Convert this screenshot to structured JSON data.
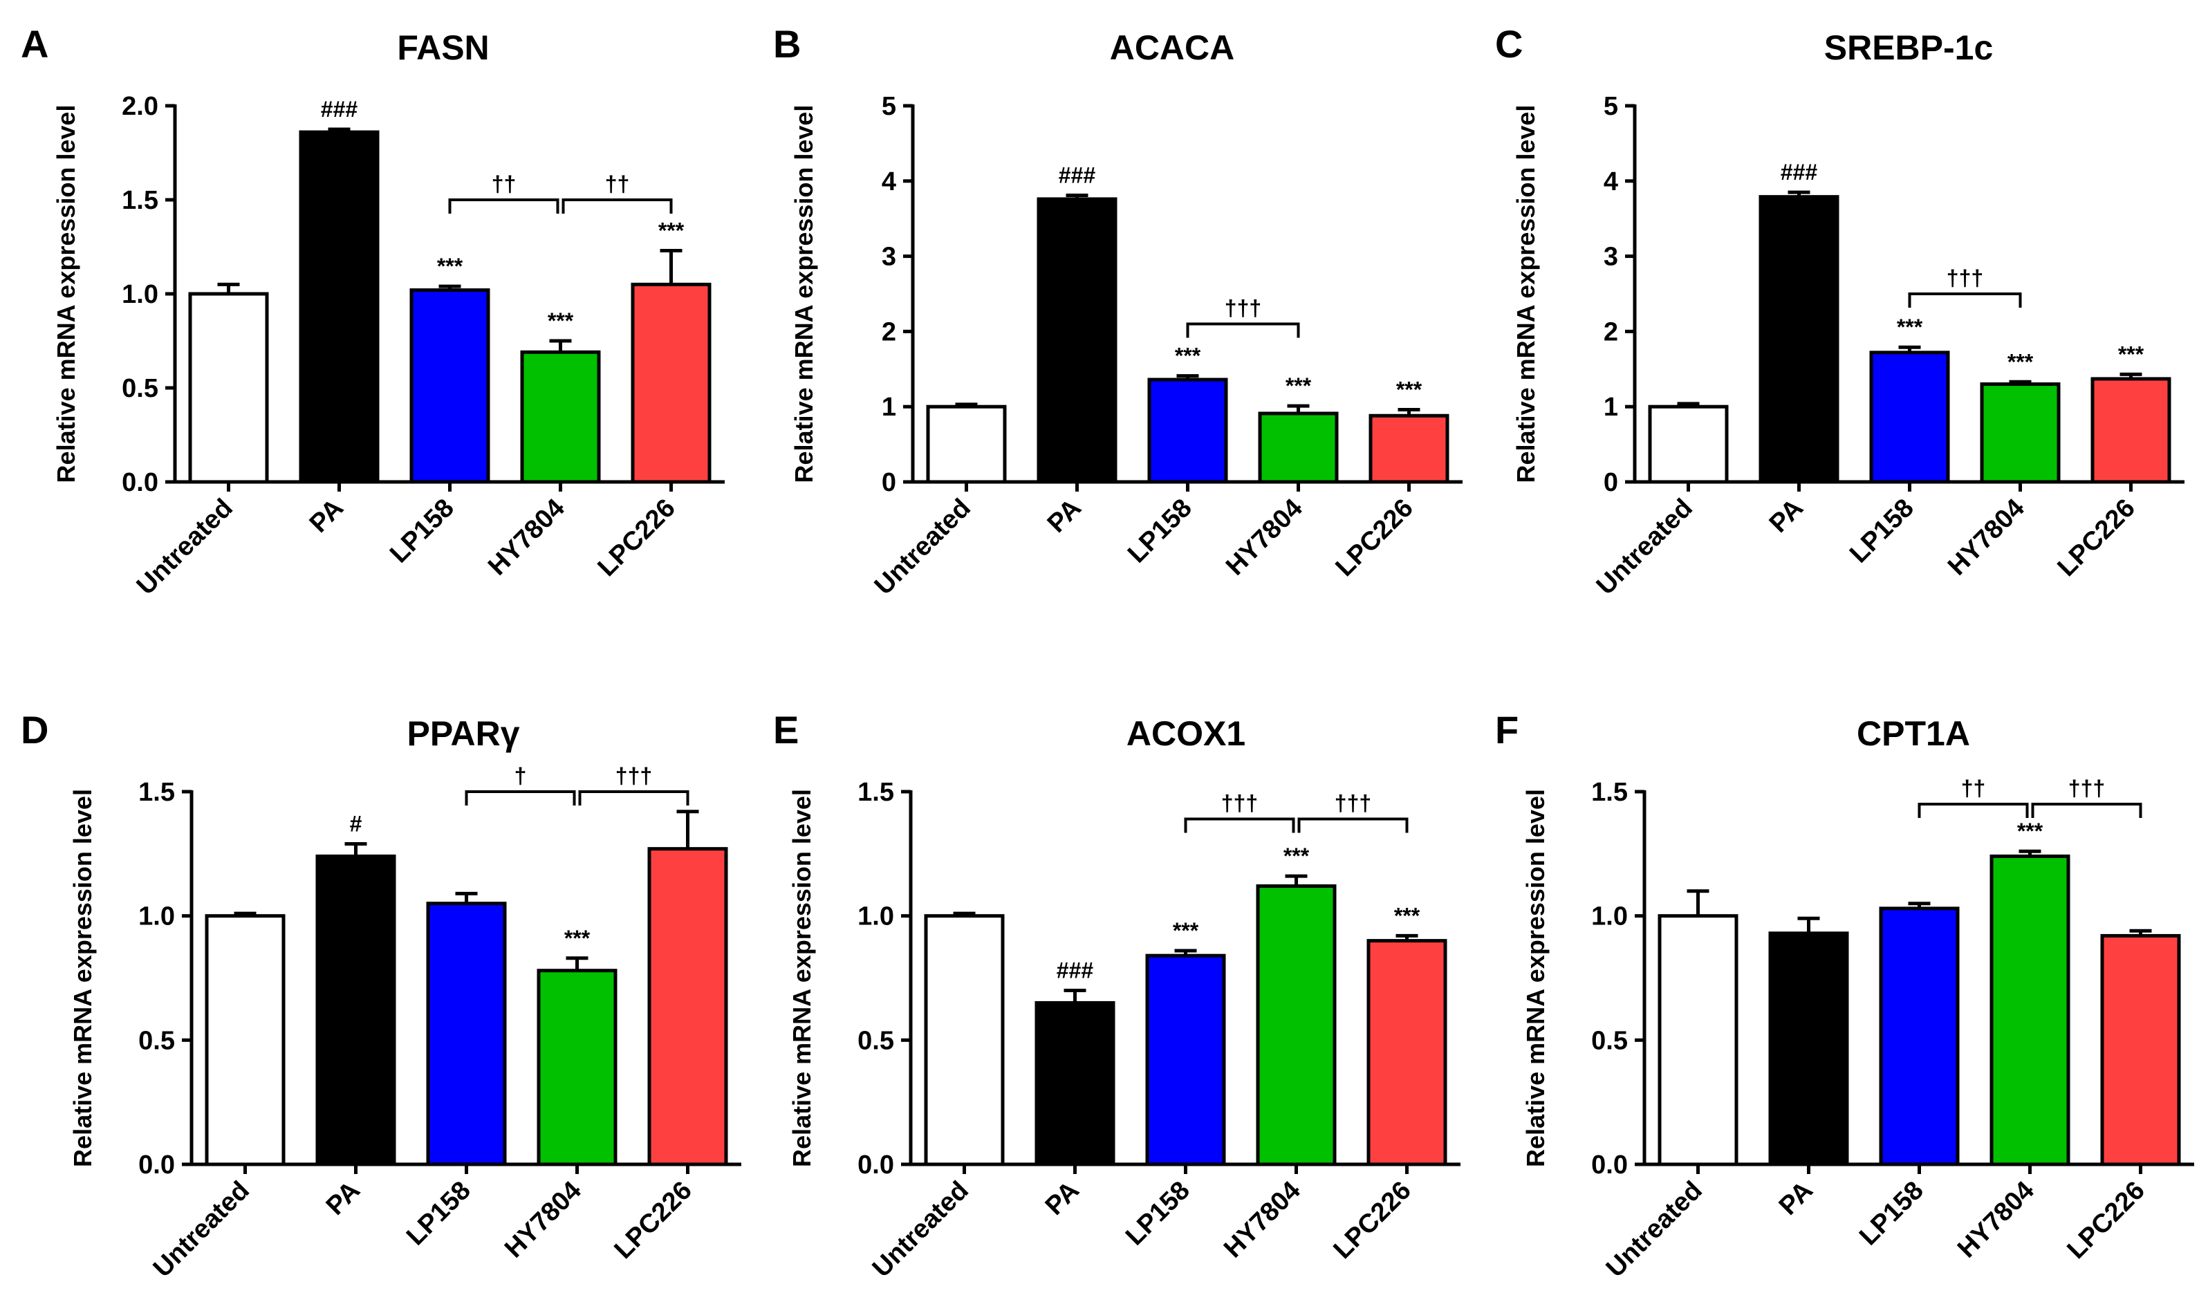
{
  "chart_data": [
    {
      "letter": "A",
      "title": "FASN",
      "type": "bar",
      "ylabel": "Relative mRNA expression level",
      "ylim": [
        0,
        2.0
      ],
      "ytick_labels": [
        "0.0",
        "0.5",
        "1.0",
        "1.5",
        "2.0"
      ],
      "categories": [
        "Untreated",
        "PA",
        "LP158",
        "HY7804",
        "LPC226"
      ],
      "values": [
        1.0,
        1.86,
        1.02,
        0.69,
        1.05
      ],
      "errors": [
        0.05,
        0.015,
        0.02,
        0.06,
        0.18
      ],
      "bar_colors": [
        "#ffffff",
        "#000000",
        "#0000ff",
        "#00c000",
        "#ff4040"
      ],
      "labels": [
        "",
        "###",
        "***",
        "***",
        "***"
      ],
      "brackets": [
        {
          "from": 2,
          "to": 3,
          "y": 1.5,
          "label": "††"
        },
        {
          "from": 3,
          "to": 4,
          "y": 1.5,
          "label": "††"
        }
      ]
    },
    {
      "letter": "B",
      "title": "ACACA",
      "type": "bar",
      "ylabel": "Relative mRNA expression level",
      "ylim": [
        0,
        5
      ],
      "ytick_labels": [
        "0",
        "1",
        "2",
        "3",
        "4",
        "5"
      ],
      "categories": [
        "Untreated",
        "PA",
        "LP158",
        "HY7804",
        "LPC226"
      ],
      "values": [
        1.0,
        3.76,
        1.36,
        0.91,
        0.88
      ],
      "errors": [
        0.03,
        0.05,
        0.05,
        0.1,
        0.08
      ],
      "bar_colors": [
        "#ffffff",
        "#000000",
        "#0000ff",
        "#00c000",
        "#ff4040"
      ],
      "labels": [
        "",
        "###",
        "***",
        "***",
        "***"
      ],
      "brackets": [
        {
          "from": 2,
          "to": 3,
          "y": 2.1,
          "label": "†††"
        }
      ]
    },
    {
      "letter": "C",
      "title": "SREBP-1c",
      "type": "bar",
      "ylabel": "Relative mRNA expression level",
      "ylim": [
        0,
        5
      ],
      "ytick_labels": [
        "0",
        "1",
        "2",
        "3",
        "4",
        "5"
      ],
      "categories": [
        "Untreated",
        "PA",
        "LP158",
        "HY7804",
        "LPC226"
      ],
      "values": [
        1.0,
        3.79,
        1.72,
        1.3,
        1.37
      ],
      "errors": [
        0.04,
        0.06,
        0.07,
        0.03,
        0.06
      ],
      "bar_colors": [
        "#ffffff",
        "#000000",
        "#0000ff",
        "#00c000",
        "#ff4040"
      ],
      "labels": [
        "",
        "###",
        "***",
        "***",
        "***"
      ],
      "brackets": [
        {
          "from": 2,
          "to": 3,
          "y": 2.5,
          "label": "†††"
        }
      ]
    },
    {
      "letter": "D",
      "title": "PPARγ",
      "type": "bar",
      "ylabel": "Relative mRNA expression level",
      "ylim": [
        0,
        1.5
      ],
      "ytick_labels": [
        "0.0",
        "0.5",
        "1.0",
        "1.5"
      ],
      "categories": [
        "Untreated",
        "PA",
        "LP158",
        "HY7804",
        "LPC226"
      ],
      "values": [
        1.0,
        1.24,
        1.05,
        0.78,
        1.27
      ],
      "errors": [
        0.01,
        0.05,
        0.04,
        0.05,
        0.15
      ],
      "bar_colors": [
        "#ffffff",
        "#000000",
        "#0000ff",
        "#00c000",
        "#ff4040"
      ],
      "labels": [
        "",
        "#",
        "",
        "***",
        ""
      ],
      "brackets": [
        {
          "from": 2,
          "to": 3,
          "y": 1.5,
          "label": "†"
        },
        {
          "from": 3,
          "to": 4,
          "y": 1.5,
          "label": "†††"
        }
      ]
    },
    {
      "letter": "E",
      "title": "ACOX1",
      "type": "bar",
      "ylabel": "Relative mRNA expression level",
      "ylim": [
        0,
        1.5
      ],
      "ytick_labels": [
        "0.0",
        "0.5",
        "1.0",
        "1.5"
      ],
      "categories": [
        "Untreated",
        "PA",
        "LP158",
        "HY7804",
        "LPC226"
      ],
      "values": [
        1.0,
        0.65,
        0.84,
        1.12,
        0.9
      ],
      "errors": [
        0.01,
        0.05,
        0.02,
        0.04,
        0.02
      ],
      "bar_colors": [
        "#ffffff",
        "#000000",
        "#0000ff",
        "#00c000",
        "#ff4040"
      ],
      "labels": [
        "",
        "###",
        "***",
        "***",
        "***"
      ],
      "brackets": [
        {
          "from": 2,
          "to": 3,
          "y": 1.39,
          "label": "†††"
        },
        {
          "from": 3,
          "to": 4,
          "y": 1.39,
          "label": "†††"
        }
      ]
    },
    {
      "letter": "F",
      "title": "CPT1A",
      "type": "bar",
      "ylabel": "Relative mRNA expression level",
      "ylim": [
        0,
        1.5
      ],
      "ytick_labels": [
        "0.0",
        "0.5",
        "1.0",
        "1.5"
      ],
      "categories": [
        "Untreated",
        "PA",
        "LP158",
        "HY7804",
        "LPC226"
      ],
      "values": [
        1.0,
        0.93,
        1.03,
        1.24,
        0.92
      ],
      "errors": [
        0.1,
        0.06,
        0.02,
        0.02,
        0.02
      ],
      "bar_colors": [
        "#ffffff",
        "#000000",
        "#0000ff",
        "#00c000",
        "#ff4040"
      ],
      "labels": [
        "",
        "",
        "",
        "***",
        ""
      ],
      "brackets": [
        {
          "from": 2,
          "to": 3,
          "y": 1.45,
          "label": "††"
        },
        {
          "from": 3,
          "to": 4,
          "y": 1.45,
          "label": "†††"
        }
      ]
    }
  ]
}
